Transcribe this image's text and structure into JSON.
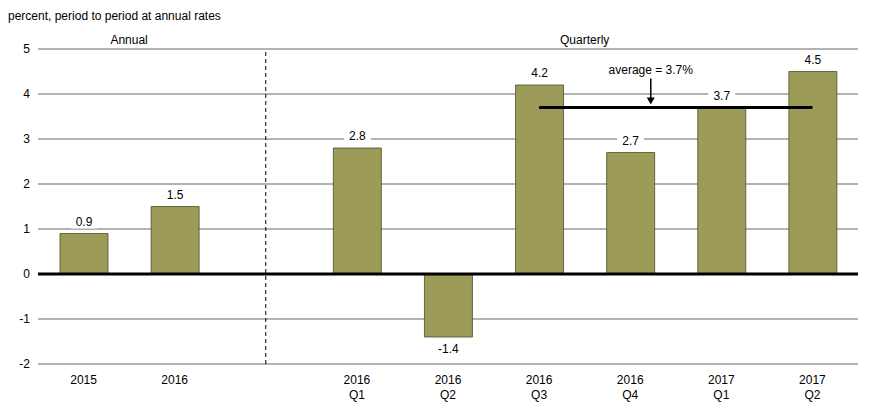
{
  "chart_data": {
    "type": "bar",
    "y_label": "percent, period to period at annual rates",
    "categories": [
      "2015",
      "2016",
      null,
      "2016 Q1",
      "2016 Q2",
      "2016 Q3",
      "2016 Q4",
      "2017 Q1",
      "2017 Q2"
    ],
    "values": [
      0.9,
      1.5,
      null,
      2.8,
      -1.4,
      4.2,
      2.7,
      3.7,
      4.5
    ],
    "color": "#9c9b58",
    "ylim": [
      -2,
      5
    ],
    "yticks": [
      -2,
      -1,
      0,
      1,
      2,
      3,
      4,
      5
    ],
    "grid": true,
    "data_labels": true,
    "sections": [
      {
        "label": "Annual",
        "from": "2015",
        "to": "2016"
      },
      {
        "label": "Quarterly",
        "from": "2016 Q1",
        "to": "2017 Q2"
      }
    ],
    "average": {
      "value": 3.7,
      "label": "average = 3.7%",
      "from": "2016 Q3",
      "to": "2017 Q2"
    }
  }
}
